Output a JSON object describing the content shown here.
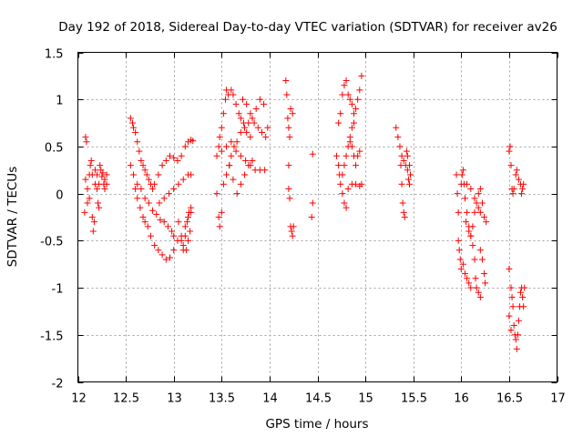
{
  "chart_data": {
    "type": "scatter",
    "title": "Day 192 of 2018, Sidereal Day-to-day VTEC variation (SDTVAR) for receiver av26",
    "xlabel": "GPS time / hours",
    "ylabel": "SDTVAR / TECUs",
    "xlim": [
      12,
      17
    ],
    "ylim": [
      -2,
      1.5
    ],
    "xticks": [
      12,
      12.5,
      13,
      13.5,
      14,
      14.5,
      15,
      15.5,
      16,
      16.5,
      17
    ],
    "yticks": [
      -2,
      -1.5,
      -1,
      -0.5,
      0,
      0.5,
      1,
      1.5
    ],
    "xtick_labels": [
      "12",
      "12.5",
      "13",
      "13.5",
      "14",
      "14.5",
      "15",
      "15.5",
      "16",
      "16.5",
      "17"
    ],
    "ytick_labels": [
      "-2",
      "-1.5",
      "-1",
      "-0.5",
      "0",
      "0.5",
      "1",
      "1.5"
    ],
    "grid": true,
    "marker": "plus",
    "color": "#ff0000",
    "series": [
      {
        "name": "SDTVAR",
        "points": [
          [
            12.08,
            0.6
          ],
          [
            12.09,
            0.55
          ],
          [
            12.08,
            0.15
          ],
          [
            12.1,
            0.05
          ],
          [
            12.12,
            -0.05
          ],
          [
            12.07,
            -0.2
          ],
          [
            12.1,
            -0.1
          ],
          [
            12.12,
            0.2
          ],
          [
            12.13,
            0.3
          ],
          [
            12.14,
            0.35
          ],
          [
            12.15,
            0.2
          ],
          [
            12.15,
            -0.25
          ],
          [
            12.16,
            -0.4
          ],
          [
            12.17,
            -0.3
          ],
          [
            12.18,
            0.1
          ],
          [
            12.18,
            0.25
          ],
          [
            12.2,
            0.2
          ],
          [
            12.2,
            0.05
          ],
          [
            12.21,
            -0.1
          ],
          [
            12.22,
            0.1
          ],
          [
            12.22,
            -0.15
          ],
          [
            12.23,
            0.3
          ],
          [
            12.24,
            0.25
          ],
          [
            12.25,
            0.18
          ],
          [
            12.26,
            0.22
          ],
          [
            12.27,
            0.1
          ],
          [
            12.28,
            0.05
          ],
          [
            12.28,
            0.15
          ],
          [
            12.3,
            0.1
          ],
          [
            12.3,
            0.2
          ],
          [
            12.55,
            0.8
          ],
          [
            12.57,
            0.75
          ],
          [
            12.58,
            0.7
          ],
          [
            12.6,
            0.65
          ],
          [
            12.62,
            0.55
          ],
          [
            12.64,
            0.45
          ],
          [
            12.66,
            0.35
          ],
          [
            12.68,
            0.3
          ],
          [
            12.7,
            0.25
          ],
          [
            12.72,
            0.2
          ],
          [
            12.74,
            0.15
          ],
          [
            12.76,
            0.1
          ],
          [
            12.78,
            0.05
          ],
          [
            12.55,
            0.3
          ],
          [
            12.58,
            0.2
          ],
          [
            12.6,
            0.05
          ],
          [
            12.62,
            -0.05
          ],
          [
            12.65,
            -0.15
          ],
          [
            12.68,
            -0.25
          ],
          [
            12.7,
            -0.3
          ],
          [
            12.73,
            -0.35
          ],
          [
            12.76,
            -0.45
          ],
          [
            12.8,
            -0.55
          ],
          [
            12.84,
            -0.6
          ],
          [
            12.88,
            -0.65
          ],
          [
            12.92,
            -0.7
          ],
          [
            12.96,
            -0.68
          ],
          [
            13.0,
            -0.6
          ],
          [
            13.04,
            -0.5
          ],
          [
            13.08,
            -0.45
          ],
          [
            13.12,
            -0.35
          ],
          [
            13.15,
            -0.25
          ],
          [
            13.18,
            -0.2
          ],
          [
            12.62,
            0.1
          ],
          [
            12.66,
            0.05
          ],
          [
            12.7,
            -0.05
          ],
          [
            12.74,
            -0.1
          ],
          [
            12.78,
            -0.18
          ],
          [
            12.82,
            -0.22
          ],
          [
            12.86,
            -0.28
          ],
          [
            12.9,
            -0.3
          ],
          [
            12.94,
            -0.35
          ],
          [
            12.98,
            -0.4
          ],
          [
            13.0,
            -0.45
          ],
          [
            12.8,
            0.1
          ],
          [
            12.84,
            0.2
          ],
          [
            12.88,
            0.3
          ],
          [
            12.92,
            0.35
          ],
          [
            12.96,
            0.4
          ],
          [
            13.0,
            0.38
          ],
          [
            13.04,
            0.35
          ],
          [
            13.08,
            0.4
          ],
          [
            13.12,
            0.5
          ],
          [
            13.15,
            0.55
          ],
          [
            13.18,
            0.57
          ],
          [
            13.2,
            0.56
          ],
          [
            12.85,
            -0.1
          ],
          [
            12.9,
            -0.05
          ],
          [
            12.95,
            0.0
          ],
          [
            13.0,
            0.05
          ],
          [
            13.05,
            0.1
          ],
          [
            13.1,
            0.15
          ],
          [
            13.15,
            0.2
          ],
          [
            13.18,
            0.2
          ],
          [
            13.05,
            -0.3
          ],
          [
            13.08,
            -0.5
          ],
          [
            13.1,
            -0.55
          ],
          [
            13.12,
            -0.45
          ],
          [
            13.14,
            -0.3
          ],
          [
            13.16,
            -0.2
          ],
          [
            13.18,
            -0.15
          ],
          [
            13.1,
            -0.6
          ],
          [
            13.13,
            -0.6
          ],
          [
            13.15,
            -0.5
          ],
          [
            13.17,
            -0.4
          ],
          [
            13.45,
            0.4
          ],
          [
            13.47,
            0.5
          ],
          [
            13.48,
            0.6
          ],
          [
            13.5,
            0.7
          ],
          [
            13.52,
            0.85
          ],
          [
            13.54,
            1.0
          ],
          [
            13.55,
            1.1
          ],
          [
            13.57,
            1.05
          ],
          [
            13.6,
            1.1
          ],
          [
            13.62,
            1.05
          ],
          [
            13.65,
            0.95
          ],
          [
            13.68,
            0.85
          ],
          [
            13.7,
            0.8
          ],
          [
            13.73,
            0.75
          ],
          [
            13.76,
            0.65
          ],
          [
            13.8,
            0.6
          ],
          [
            13.45,
            0.0
          ],
          [
            13.47,
            -0.25
          ],
          [
            13.48,
            -0.35
          ],
          [
            13.5,
            -0.2
          ],
          [
            13.52,
            0.1
          ],
          [
            13.55,
            0.2
          ],
          [
            13.58,
            0.3
          ],
          [
            13.6,
            0.4
          ],
          [
            13.63,
            0.5
          ],
          [
            13.66,
            0.55
          ],
          [
            13.7,
            0.65
          ],
          [
            13.74,
            0.7
          ],
          [
            13.78,
            0.75
          ],
          [
            13.82,
            0.8
          ],
          [
            13.86,
            0.9
          ],
          [
            13.9,
            1.0
          ],
          [
            13.94,
            0.95
          ],
          [
            13.98,
            0.7
          ],
          [
            13.5,
            0.45
          ],
          [
            13.55,
            0.5
          ],
          [
            13.6,
            0.55
          ],
          [
            13.65,
            0.45
          ],
          [
            13.7,
            0.4
          ],
          [
            13.75,
            0.35
          ],
          [
            13.8,
            0.3
          ],
          [
            13.85,
            0.25
          ],
          [
            13.9,
            0.25
          ],
          [
            13.95,
            0.25
          ],
          [
            13.72,
            1.0
          ],
          [
            13.76,
            0.95
          ],
          [
            13.8,
            0.85
          ],
          [
            13.84,
            0.75
          ],
          [
            13.88,
            0.7
          ],
          [
            13.92,
            0.65
          ],
          [
            13.96,
            0.6
          ],
          [
            13.58,
            0.3
          ],
          [
            13.62,
            0.15
          ],
          [
            13.66,
            0.0
          ],
          [
            13.7,
            0.1
          ],
          [
            13.74,
            0.2
          ],
          [
            13.78,
            0.3
          ],
          [
            13.82,
            0.35
          ],
          [
            14.17,
            1.2
          ],
          [
            14.18,
            1.05
          ],
          [
            14.19,
            0.8
          ],
          [
            14.2,
            0.7
          ],
          [
            14.21,
            0.6
          ],
          [
            14.22,
            0.9
          ],
          [
            14.24,
            0.85
          ],
          [
            14.2,
            0.3
          ],
          [
            14.2,
            0.05
          ],
          [
            14.21,
            -0.05
          ],
          [
            14.22,
            -0.35
          ],
          [
            14.23,
            -0.4
          ],
          [
            14.24,
            -0.45
          ],
          [
            14.25,
            -0.35
          ],
          [
            14.45,
            0.42
          ],
          [
            14.45,
            -0.1
          ],
          [
            14.44,
            -0.25
          ],
          [
            14.7,
            0.4
          ],
          [
            14.72,
            0.3
          ],
          [
            14.73,
            0.2
          ],
          [
            14.74,
            0.1
          ],
          [
            14.76,
            0.0
          ],
          [
            14.78,
            -0.1
          ],
          [
            14.8,
            -0.15
          ],
          [
            14.72,
            0.75
          ],
          [
            14.74,
            0.85
          ],
          [
            14.76,
            1.05
          ],
          [
            14.78,
            1.15
          ],
          [
            14.8,
            1.2
          ],
          [
            14.82,
            1.05
          ],
          [
            14.84,
            1.0
          ],
          [
            14.86,
            0.95
          ],
          [
            14.88,
            0.85
          ],
          [
            14.9,
            0.9
          ],
          [
            14.92,
            1.0
          ],
          [
            14.94,
            1.1
          ],
          [
            14.96,
            1.25
          ],
          [
            14.76,
            0.2
          ],
          [
            14.78,
            0.3
          ],
          [
            14.8,
            0.4
          ],
          [
            14.82,
            0.5
          ],
          [
            14.84,
            0.55
          ],
          [
            14.86,
            0.5
          ],
          [
            14.88,
            0.4
          ],
          [
            14.9,
            0.3
          ],
          [
            14.92,
            0.4
          ],
          [
            14.94,
            0.45
          ],
          [
            14.82,
            0.05
          ],
          [
            14.86,
            0.1
          ],
          [
            14.9,
            0.1
          ],
          [
            14.94,
            0.08
          ],
          [
            14.96,
            0.1
          ],
          [
            14.84,
            0.6
          ],
          [
            14.86,
            0.7
          ],
          [
            14.88,
            0.75
          ],
          [
            15.32,
            0.7
          ],
          [
            15.34,
            0.6
          ],
          [
            15.36,
            0.5
          ],
          [
            15.37,
            0.3
          ],
          [
            15.38,
            0.1
          ],
          [
            15.39,
            -0.1
          ],
          [
            15.4,
            -0.2
          ],
          [
            15.41,
            -0.25
          ],
          [
            15.38,
            0.4
          ],
          [
            15.4,
            0.35
          ],
          [
            15.42,
            0.3
          ],
          [
            15.44,
            0.25
          ],
          [
            15.45,
            0.15
          ],
          [
            15.46,
            0.1
          ],
          [
            15.43,
            0.45
          ],
          [
            15.44,
            0.4
          ],
          [
            15.46,
            0.3
          ],
          [
            15.47,
            0.2
          ],
          [
            15.95,
            0.2
          ],
          [
            15.96,
            0.0
          ],
          [
            15.97,
            -0.2
          ],
          [
            15.97,
            -0.5
          ],
          [
            15.98,
            -0.6
          ],
          [
            15.99,
            -0.7
          ],
          [
            16.0,
            -0.8
          ],
          [
            16.0,
            0.1
          ],
          [
            16.01,
            0.2
          ],
          [
            16.02,
            0.25
          ],
          [
            16.03,
            0.1
          ],
          [
            16.04,
            -0.05
          ],
          [
            16.06,
            -0.2
          ],
          [
            16.08,
            -0.35
          ],
          [
            16.1,
            -0.45
          ],
          [
            16.12,
            -0.55
          ],
          [
            16.14,
            -0.7
          ],
          [
            16.15,
            -0.9
          ],
          [
            16.16,
            -1.0
          ],
          [
            16.18,
            -1.05
          ],
          [
            16.2,
            -1.1
          ],
          [
            16.02,
            -0.75
          ],
          [
            16.04,
            -0.85
          ],
          [
            16.06,
            -0.9
          ],
          [
            16.08,
            -0.95
          ],
          [
            16.1,
            -1.0
          ],
          [
            16.05,
            -0.3
          ],
          [
            16.08,
            -0.4
          ],
          [
            16.1,
            -0.45
          ],
          [
            16.12,
            -0.35
          ],
          [
            16.14,
            -0.2
          ],
          [
            16.16,
            -0.1
          ],
          [
            16.18,
            0.0
          ],
          [
            16.2,
            0.05
          ],
          [
            16.22,
            -0.1
          ],
          [
            16.24,
            -0.25
          ],
          [
            16.26,
            -0.3
          ],
          [
            16.06,
            0.1
          ],
          [
            16.1,
            0.05
          ],
          [
            16.14,
            -0.05
          ],
          [
            16.18,
            -0.15
          ],
          [
            16.2,
            -0.2
          ],
          [
            16.2,
            -0.6
          ],
          [
            16.22,
            -0.7
          ],
          [
            16.24,
            -0.85
          ],
          [
            16.25,
            -0.95
          ],
          [
            16.5,
            0.45
          ],
          [
            16.51,
            0.5
          ],
          [
            16.52,
            0.3
          ],
          [
            16.53,
            0.05
          ],
          [
            16.54,
            0.0
          ],
          [
            16.55,
            0.05
          ],
          [
            16.57,
            0.2
          ],
          [
            16.58,
            0.25
          ],
          [
            16.6,
            0.15
          ],
          [
            16.62,
            0.1
          ],
          [
            16.63,
            0.0
          ],
          [
            16.64,
            0.05
          ],
          [
            16.65,
            0.1
          ],
          [
            16.5,
            -0.8
          ],
          [
            16.52,
            -1.0
          ],
          [
            16.53,
            -1.1
          ],
          [
            16.54,
            -1.2
          ],
          [
            16.55,
            -1.4
          ],
          [
            16.56,
            -1.5
          ],
          [
            16.57,
            -1.55
          ],
          [
            16.58,
            -1.65
          ],
          [
            16.59,
            -1.5
          ],
          [
            16.6,
            -1.35
          ],
          [
            16.61,
            -1.2
          ],
          [
            16.62,
            -1.05
          ],
          [
            16.63,
            -1.0
          ],
          [
            16.64,
            -1.1
          ],
          [
            16.65,
            -1.2
          ],
          [
            16.66,
            -1.0
          ],
          [
            16.5,
            -1.3
          ],
          [
            16.52,
            -1.45
          ]
        ]
      }
    ]
  }
}
